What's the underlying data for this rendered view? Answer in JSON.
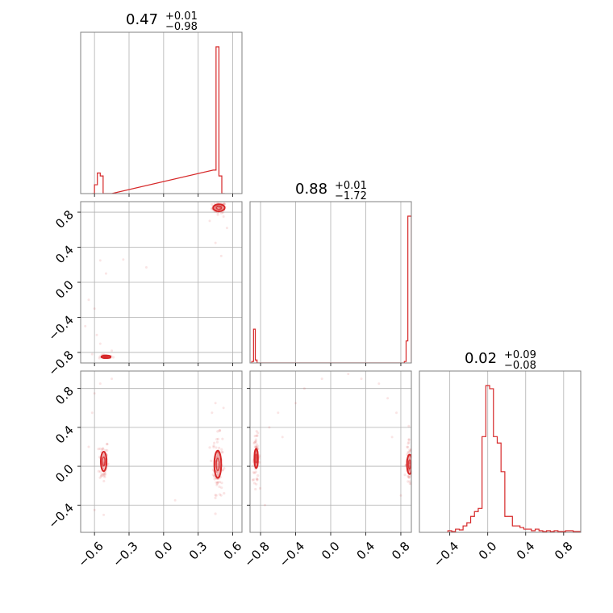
{
  "chart_data": {
    "type": "corner",
    "color": "#d62728",
    "grid": true,
    "panels": [
      {
        "id": "hist-0",
        "kind": "histogram",
        "row": 0,
        "col": 0,
        "title": {
          "value": "0.47",
          "plus": "+0.01",
          "minus": "−0.98"
        },
        "xlim": [
          -0.72,
          0.68
        ],
        "bins": [
          {
            "x0": -0.62,
            "x1": -0.6,
            "h": 0.0
          },
          {
            "x0": -0.6,
            "x1": -0.575,
            "h": 0.06
          },
          {
            "x0": -0.575,
            "x1": -0.55,
            "h": 0.14
          },
          {
            "x0": -0.55,
            "x1": -0.525,
            "h": 0.12
          },
          {
            "x0": -0.525,
            "x1": -0.45,
            "h": 0.0
          },
          {
            "x0": 0.43,
            "x1": 0.455,
            "h": 0.16
          },
          {
            "x0": 0.455,
            "x1": 0.48,
            "h": 1.0
          },
          {
            "x0": 0.48,
            "x1": 0.505,
            "h": 0.12
          },
          {
            "x0": 0.505,
            "x1": 0.53,
            "h": 0.0
          }
        ]
      },
      {
        "id": "scatter-1-0",
        "kind": "scatter",
        "row": 1,
        "col": 0,
        "xlim": [
          -0.72,
          0.68
        ],
        "ylim": [
          -0.92,
          0.92
        ],
        "yticks": [
          {
            "v": 0.8,
            "label": "0.8"
          },
          {
            "v": 0.4,
            "label": "0.4"
          },
          {
            "v": 0.0,
            "label": "0.0"
          },
          {
            "v": -0.4,
            "label": "−0.4"
          },
          {
            "v": -0.8,
            "label": "−0.8"
          }
        ],
        "clusters": [
          {
            "cx": 0.48,
            "cy": 0.85,
            "sx": 0.03,
            "sy": 0.03,
            "n": 70,
            "contour": [
              0.05,
              0.04
            ]
          },
          {
            "cx": -0.5,
            "cy": -0.85,
            "sx": 0.03,
            "sy": 0.01,
            "n": 40,
            "contour": [
              0.04,
              0.015
            ]
          }
        ],
        "outliers": [
          [
            -0.55,
            0.25
          ],
          [
            -0.35,
            0.26
          ],
          [
            -0.15,
            0.17
          ],
          [
            -0.6,
            -0.3
          ],
          [
            -0.58,
            -0.6
          ],
          [
            -0.65,
            -0.2
          ],
          [
            -0.55,
            -0.7
          ],
          [
            0.4,
            0.7
          ],
          [
            0.55,
            0.62
          ],
          [
            0.52,
            0.75
          ],
          [
            -0.68,
            -0.5
          ],
          [
            -0.45,
            -0.78
          ],
          [
            0.45,
            0.45
          ],
          [
            0.5,
            0.3
          ],
          [
            -0.62,
            -0.82
          ],
          [
            -0.5,
            0.1
          ]
        ]
      },
      {
        "id": "hist-1",
        "kind": "histogram",
        "row": 1,
        "col": 1,
        "title": {
          "value": "0.88",
          "plus": "+0.01",
          "minus": "−1.72"
        },
        "xlim": [
          -0.92,
          0.92
        ],
        "bins": [
          {
            "x0": -0.9,
            "x1": -0.88,
            "h": 0.01
          },
          {
            "x0": -0.88,
            "x1": -0.86,
            "h": 0.23
          },
          {
            "x0": -0.86,
            "x1": -0.84,
            "h": 0.02
          },
          {
            "x0": -0.84,
            "x1": 0.84,
            "h": 0.0
          },
          {
            "x0": 0.84,
            "x1": 0.86,
            "h": 0.01
          },
          {
            "x0": 0.86,
            "x1": 0.88,
            "h": 0.15
          },
          {
            "x0": 0.88,
            "x1": 0.92,
            "h": 1.0
          }
        ]
      },
      {
        "id": "scatter-2-0",
        "kind": "scatter",
        "row": 2,
        "col": 0,
        "xlim": [
          -0.72,
          0.68
        ],
        "ylim": [
          -0.68,
          0.98
        ],
        "xticks": [
          {
            "v": -0.6,
            "label": "−0.6"
          },
          {
            "v": -0.3,
            "label": "−0.3"
          },
          {
            "v": 0.0,
            "label": "0.0"
          },
          {
            "v": 0.3,
            "label": "0.3"
          },
          {
            "v": 0.6,
            "label": "0.6"
          }
        ],
        "yticks": [
          {
            "v": 0.8,
            "label": "0.8"
          },
          {
            "v": 0.4,
            "label": "0.4"
          },
          {
            "v": 0.0,
            "label": "0.0"
          },
          {
            "v": -0.4,
            "label": "−0.4"
          }
        ],
        "clusters": [
          {
            "cx": -0.52,
            "cy": 0.05,
            "sx": 0.02,
            "sy": 0.12,
            "n": 60,
            "contour": [
              0.025,
              0.1
            ]
          },
          {
            "cx": 0.47,
            "cy": 0.02,
            "sx": 0.02,
            "sy": 0.15,
            "n": 110,
            "contour": [
              0.03,
              0.14
            ]
          }
        ],
        "outliers": [
          [
            -0.6,
            0.75
          ],
          [
            -0.62,
            0.55
          ],
          [
            -0.55,
            0.85
          ],
          [
            -0.6,
            -0.45
          ],
          [
            -0.52,
            -0.5
          ],
          [
            0.45,
            0.65
          ],
          [
            0.52,
            0.6
          ],
          [
            0.1,
            -0.35
          ],
          [
            -0.45,
            0.9
          ],
          [
            0.5,
            -0.3
          ],
          [
            0.42,
            0.55
          ],
          [
            -0.65,
            0.2
          ]
        ]
      },
      {
        "id": "scatter-2-1",
        "kind": "scatter",
        "row": 2,
        "col": 1,
        "xlim": [
          -0.92,
          0.92
        ],
        "ylim": [
          -0.68,
          0.98
        ],
        "xticks": [
          {
            "v": -0.8,
            "label": "−0.8"
          },
          {
            "v": -0.4,
            "label": "−0.4"
          },
          {
            "v": 0.0,
            "label": "0.0"
          },
          {
            "v": 0.4,
            "label": "0.4"
          },
          {
            "v": 0.8,
            "label": "0.8"
          }
        ],
        "clusters": [
          {
            "cx": -0.85,
            "cy": 0.08,
            "sx": 0.02,
            "sy": 0.12,
            "n": 60,
            "contour": [
              0.02,
              0.1
            ]
          },
          {
            "cx": 0.9,
            "cy": 0.02,
            "sx": 0.02,
            "sy": 0.12,
            "n": 90,
            "contour": [
              0.03,
              0.1
            ]
          }
        ],
        "outliers": [
          [
            -0.6,
            0.55
          ],
          [
            -0.4,
            0.65
          ],
          [
            -0.3,
            0.8
          ],
          [
            -0.7,
            0.4
          ],
          [
            -0.75,
            -0.4
          ],
          [
            0.35,
            0.9
          ],
          [
            0.65,
            0.7
          ],
          [
            0.75,
            0.55
          ],
          [
            0.55,
            0.85
          ],
          [
            0.2,
            0.95
          ],
          [
            -0.55,
            0.3
          ],
          [
            0.8,
            -0.3
          ],
          [
            -0.1,
            0.9
          ],
          [
            0.7,
            0.3
          ]
        ]
      },
      {
        "id": "hist-2",
        "kind": "histogram",
        "row": 2,
        "col": 2,
        "title": {
          "value": "0.02",
          "plus": "+0.09",
          "minus": "−0.08"
        },
        "xlim": [
          -0.72,
          0.98
        ],
        "xticks": [
          {
            "v": -0.4,
            "label": "−0.4"
          },
          {
            "v": 0.0,
            "label": "0.0"
          },
          {
            "v": 0.4,
            "label": "0.4"
          },
          {
            "v": 0.8,
            "label": "0.8"
          }
        ],
        "bins": [
          {
            "x0": -0.42,
            "x1": -0.38,
            "h": 0.01
          },
          {
            "x0": -0.38,
            "x1": -0.34,
            "h": 0.005
          },
          {
            "x0": -0.34,
            "x1": -0.3,
            "h": 0.02
          },
          {
            "x0": -0.3,
            "x1": -0.26,
            "h": 0.015
          },
          {
            "x0": -0.26,
            "x1": -0.22,
            "h": 0.04
          },
          {
            "x0": -0.22,
            "x1": -0.18,
            "h": 0.06
          },
          {
            "x0": -0.18,
            "x1": -0.14,
            "h": 0.1
          },
          {
            "x0": -0.14,
            "x1": -0.1,
            "h": 0.13
          },
          {
            "x0": -0.1,
            "x1": -0.06,
            "h": 0.15
          },
          {
            "x0": -0.06,
            "x1": -0.02,
            "h": 0.6
          },
          {
            "x0": -0.02,
            "x1": 0.02,
            "h": 0.92
          },
          {
            "x0": 0.02,
            "x1": 0.06,
            "h": 0.9
          },
          {
            "x0": 0.06,
            "x1": 0.1,
            "h": 0.6
          },
          {
            "x0": 0.1,
            "x1": 0.14,
            "h": 0.56
          },
          {
            "x0": 0.14,
            "x1": 0.18,
            "h": 0.38
          },
          {
            "x0": 0.18,
            "x1": 0.22,
            "h": 0.1
          },
          {
            "x0": 0.22,
            "x1": 0.26,
            "h": 0.1
          },
          {
            "x0": 0.26,
            "x1": 0.3,
            "h": 0.04
          },
          {
            "x0": 0.3,
            "x1": 0.34,
            "h": 0.04
          },
          {
            "x0": 0.34,
            "x1": 0.38,
            "h": 0.03
          },
          {
            "x0": 0.38,
            "x1": 0.42,
            "h": 0.02
          },
          {
            "x0": 0.42,
            "x1": 0.46,
            "h": 0.02
          },
          {
            "x0": 0.46,
            "x1": 0.5,
            "h": 0.01
          },
          {
            "x0": 0.5,
            "x1": 0.54,
            "h": 0.02
          },
          {
            "x0": 0.54,
            "x1": 0.58,
            "h": 0.01
          },
          {
            "x0": 0.58,
            "x1": 0.62,
            "h": 0.005
          },
          {
            "x0": 0.62,
            "x1": 0.66,
            "h": 0.01
          },
          {
            "x0": 0.66,
            "x1": 0.7,
            "h": 0.005
          },
          {
            "x0": 0.7,
            "x1": 0.74,
            "h": 0.01
          },
          {
            "x0": 0.74,
            "x1": 0.78,
            "h": 0.005
          },
          {
            "x0": 0.78,
            "x1": 0.82,
            "h": 0.005
          },
          {
            "x0": 0.82,
            "x1": 0.9,
            "h": 0.01
          },
          {
            "x0": 0.9,
            "x1": 0.98,
            "h": 0.005
          }
        ]
      }
    ]
  }
}
